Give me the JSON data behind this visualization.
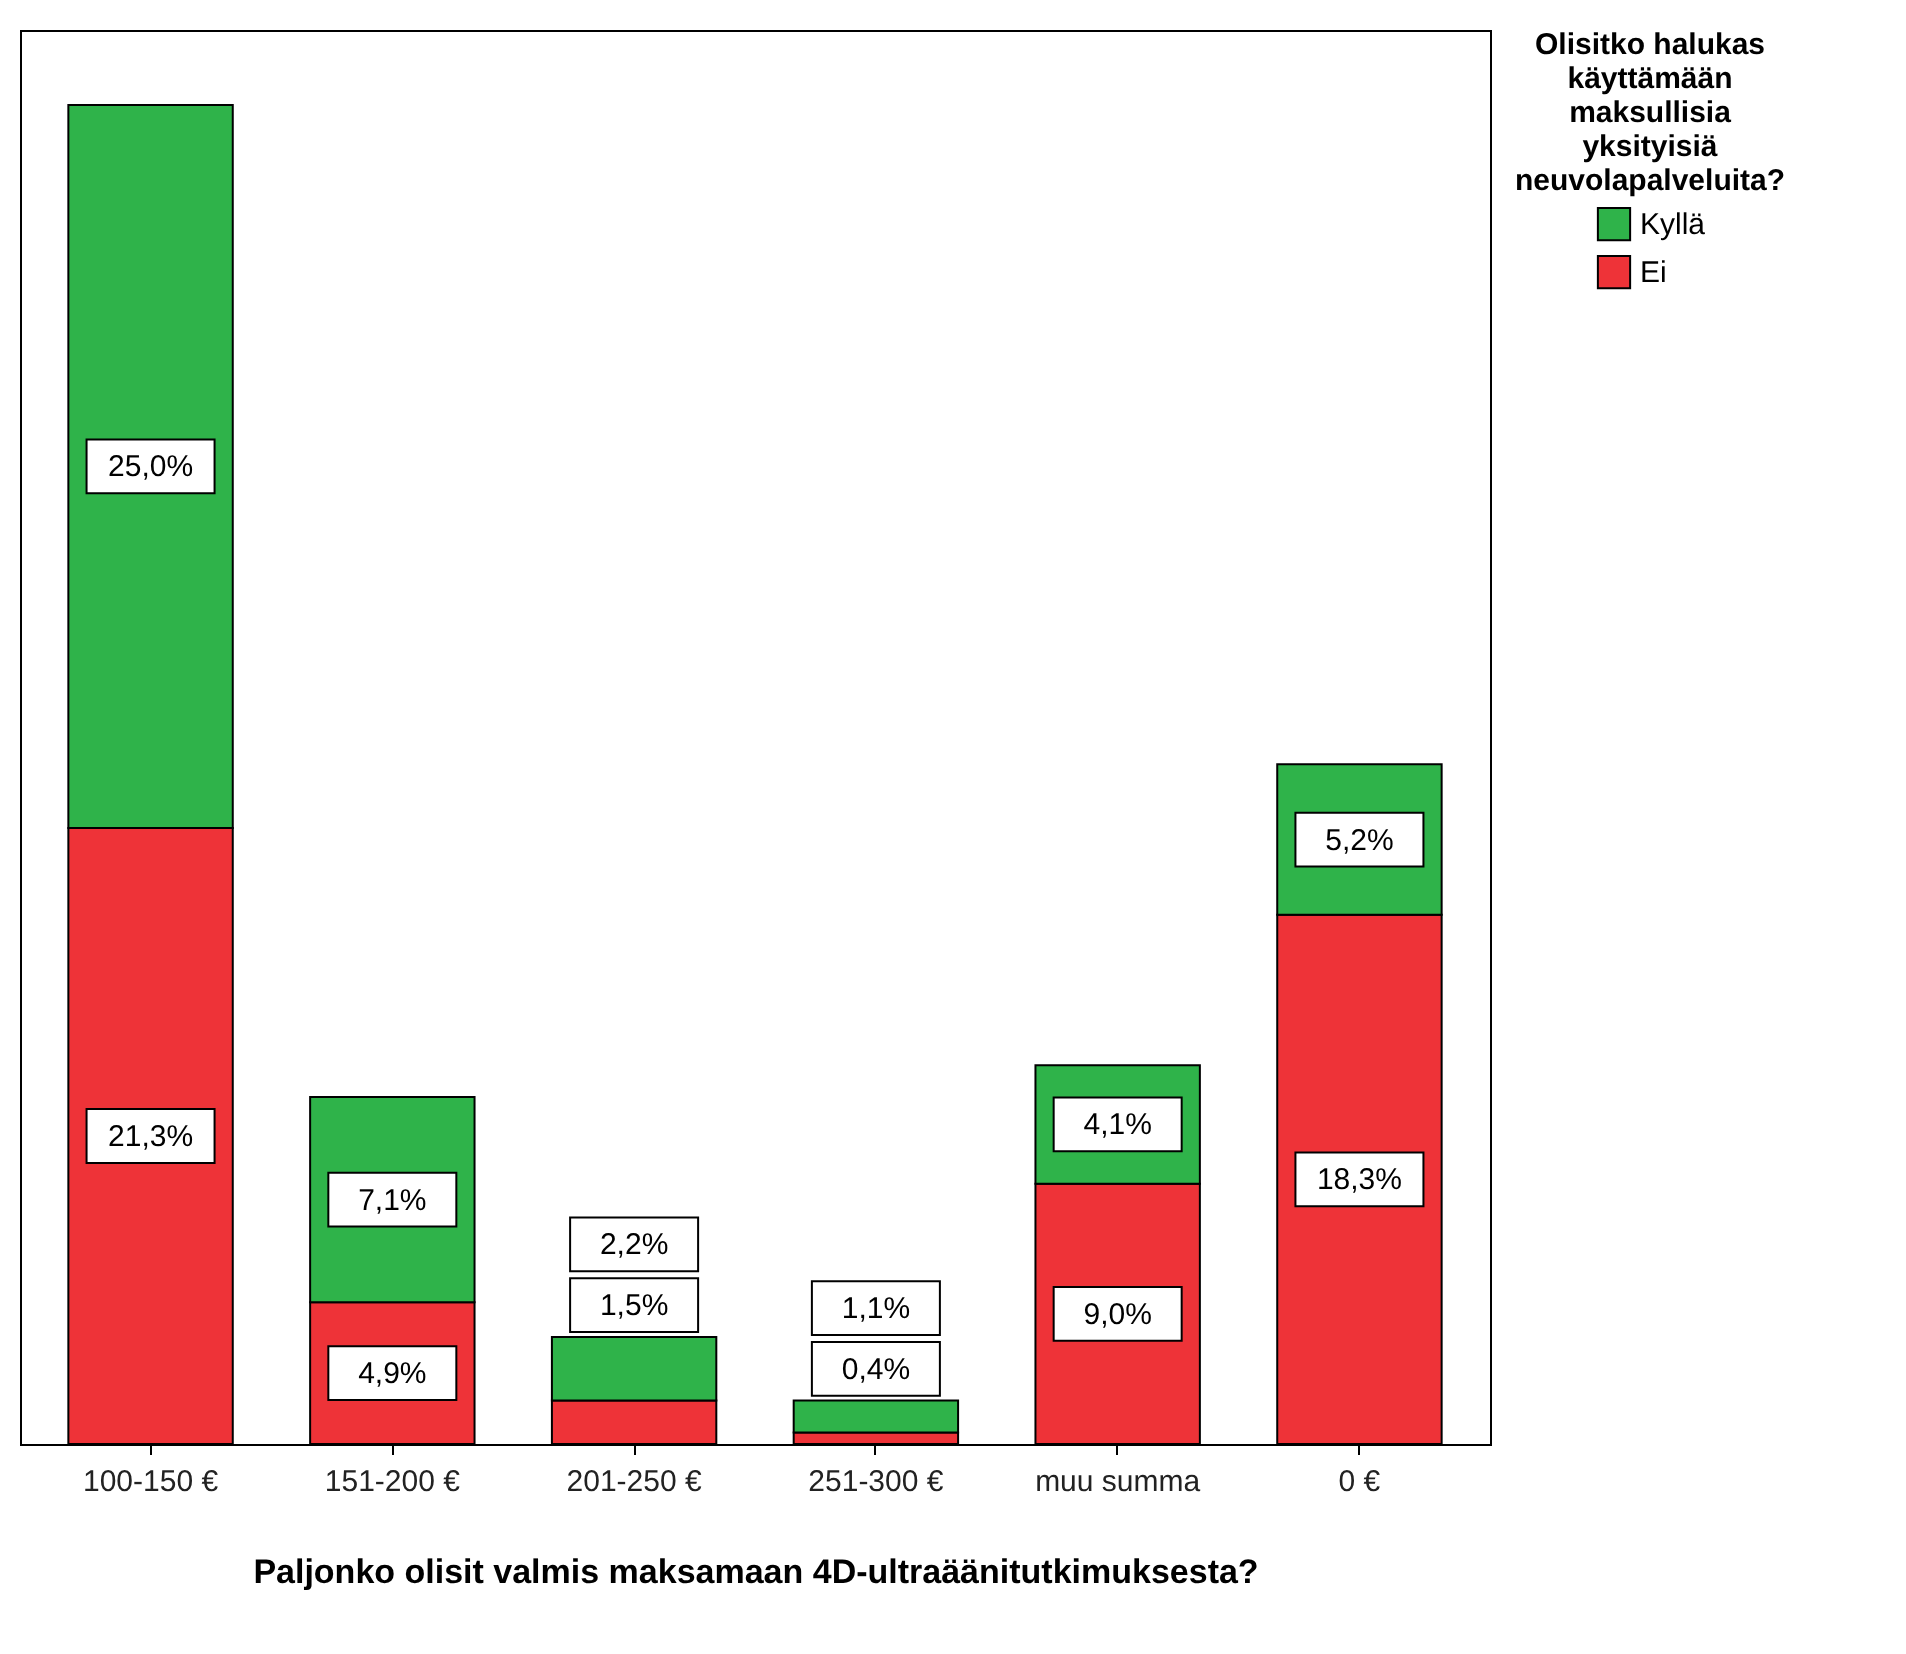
{
  "chart_data": {
    "type": "bar",
    "stacked": true,
    "xlabel": "Paljonko olisit valmis maksamaan 4D-ultraäänitutkimuksesta?",
    "legend_title": "Olisitko halukas käyttämään maksullisia yksityisiä neuvolapalveluita?",
    "legend": "top right",
    "grid": false,
    "categories": [
      "100-150 €",
      "151-200 €",
      "201-250 €",
      "251-300 €",
      "muu summa",
      "0 €"
    ],
    "series": [
      {
        "name": "Ei",
        "color": "#ee3338",
        "values": [
          21.3,
          4.9,
          1.5,
          0.4,
          9.0,
          18.3
        ],
        "value_labels": [
          "21,3%",
          "4,9%",
          "1,5%",
          "0,4%",
          "9,0%",
          "18,3%"
        ]
      },
      {
        "name": "Kyllä",
        "color": "#2fb34a",
        "values": [
          25.0,
          7.1,
          2.2,
          1.1,
          4.1,
          5.2
        ],
        "value_labels": [
          "25,0%",
          "7,1%",
          "2,2%",
          "1,1%",
          "4,1%",
          "5,2%"
        ]
      }
    ]
  }
}
